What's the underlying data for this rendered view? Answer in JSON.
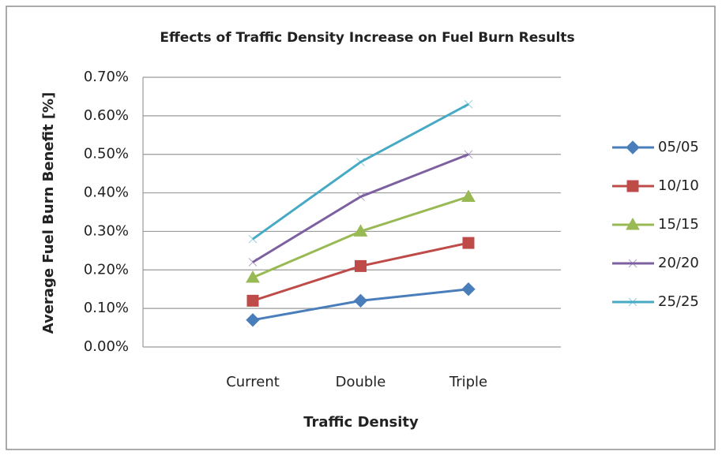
{
  "chart_data": {
    "type": "line",
    "title": "Effects of Traffic Density Increase on Fuel Burn Results",
    "xlabel": "Traffic Density",
    "ylabel": "Average Fuel Burn Benefit [%]",
    "categories": [
      "Current",
      "Double",
      "Triple"
    ],
    "series": [
      {
        "name": "05/05",
        "color": "#4a7ebb",
        "marker": "diamond",
        "values": [
          0.07,
          0.12,
          0.15
        ]
      },
      {
        "name": "10/10",
        "color": "#be4b48",
        "marker": "square",
        "values": [
          0.12,
          0.21,
          0.27
        ]
      },
      {
        "name": "15/15",
        "color": "#98b954",
        "marker": "triangle",
        "values": [
          0.18,
          0.3,
          0.39
        ]
      },
      {
        "name": "20/20",
        "color": "#7d60a0",
        "marker": "x",
        "values": [
          0.22,
          0.39,
          0.5
        ]
      },
      {
        "name": "25/25",
        "color": "#46aac5",
        "marker": "x",
        "values": [
          0.28,
          0.48,
          0.63
        ]
      }
    ],
    "ylim": [
      0,
      0.7
    ],
    "yticks": [
      {
        "value": 0,
        "label": "0.00%"
      },
      {
        "value": 0.1,
        "label": "0.10%"
      },
      {
        "value": 0.2,
        "label": "0.20%"
      },
      {
        "value": 0.3,
        "label": "0.30%"
      },
      {
        "value": 0.4,
        "label": "0.40%"
      },
      {
        "value": 0.5,
        "label": "0.50%"
      },
      {
        "value": 0.6,
        "label": "0.60%"
      },
      {
        "value": 0.7,
        "label": "0.70%"
      }
    ],
    "grid": true,
    "legend": "right"
  }
}
